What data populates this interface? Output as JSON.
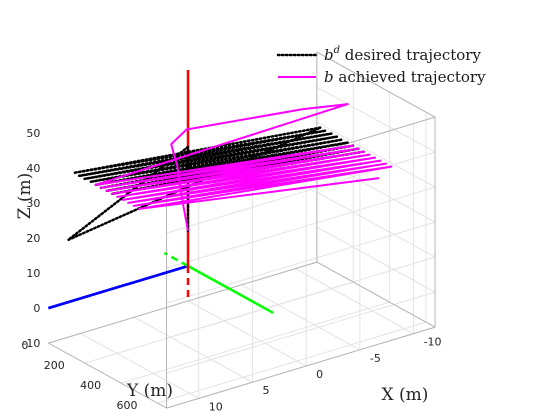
{
  "chart_data": {
    "type": "line",
    "view": "3d",
    "xlabel": "X (m)",
    "ylabel": "Y (m)",
    "zlabel": "Z (m)",
    "xlim": [
      -12,
      13
    ],
    "ylim": [
      0,
      650
    ],
    "zlim": [
      -10,
      50
    ],
    "xticks": [
      10,
      5,
      0,
      -5,
      -10
    ],
    "yticks": [
      0,
      200,
      400,
      600
    ],
    "zticks": [
      -10,
      0,
      10,
      20,
      30,
      40,
      50
    ],
    "grid": true,
    "legend": {
      "placement": "top-right",
      "entries": [
        {
          "sym": "b",
          "sup": "d",
          "text": "desired trajectory",
          "color": "#000000",
          "style": "dotted"
        },
        {
          "sym": "b",
          "sup": "",
          "text": "achieved trajectory",
          "color": "#ff00ff",
          "style": "solid"
        }
      ]
    },
    "reference_axes": [
      {
        "name": "x-axis",
        "color": "#0000ff",
        "negative_dashed": false
      },
      {
        "name": "y-axis",
        "color": "#00ff00",
        "negative_dashed": true
      },
      {
        "name": "z-axis",
        "color": "#ff0000",
        "negative_dashed": true
      }
    ],
    "series": [
      {
        "name": "desired trajectory",
        "color": "#000000",
        "style": "dotted",
        "points": [
          [
            0,
            0,
            10
          ],
          [
            0,
            0,
            34
          ],
          [
            12,
            50,
            20
          ],
          [
            -12,
            20,
            29
          ],
          [
            12,
            80,
            40
          ],
          [
            -12,
            50,
            29
          ],
          [
            12,
            110,
            40
          ],
          [
            -12,
            80,
            29
          ],
          [
            12,
            140,
            40
          ],
          [
            -12,
            110,
            29
          ],
          [
            12,
            170,
            40
          ],
          [
            -12,
            140,
            29
          ],
          [
            12,
            200,
            40
          ],
          [
            -12,
            170,
            29
          ],
          [
            12,
            230,
            40
          ],
          [
            -12,
            200,
            29
          ],
          [
            12,
            260,
            40
          ],
          [
            -12,
            230,
            29
          ],
          [
            12,
            290,
            40
          ],
          [
            -12,
            260,
            29
          ]
        ]
      },
      {
        "name": "achieved trajectory",
        "color": "#ff00ff",
        "style": "solid",
        "points": [
          [
            0,
            0,
            10
          ],
          [
            1,
            30,
            20
          ],
          [
            2,
            60,
            32
          ],
          [
            3,
            85,
            40
          ],
          [
            2,
            110,
            44
          ],
          [
            -8,
            160,
            42
          ],
          [
            -12,
            170,
            40
          ],
          [
            12,
            200,
            40
          ],
          [
            -12,
            200,
            29
          ],
          [
            12,
            230,
            40
          ],
          [
            -12,
            230,
            29
          ],
          [
            12,
            260,
            40
          ],
          [
            -12,
            260,
            29
          ],
          [
            12,
            290,
            40
          ],
          [
            -12,
            290,
            29
          ],
          [
            12,
            320,
            40
          ],
          [
            -12,
            320,
            29
          ],
          [
            12,
            350,
            40
          ],
          [
            -12,
            350,
            29
          ],
          [
            12,
            380,
            40
          ],
          [
            -12,
            380,
            29
          ],
          [
            12,
            410,
            40
          ],
          [
            -12,
            410,
            29
          ],
          [
            12,
            440,
            40
          ],
          [
            -10,
            460,
            29
          ]
        ]
      }
    ]
  }
}
